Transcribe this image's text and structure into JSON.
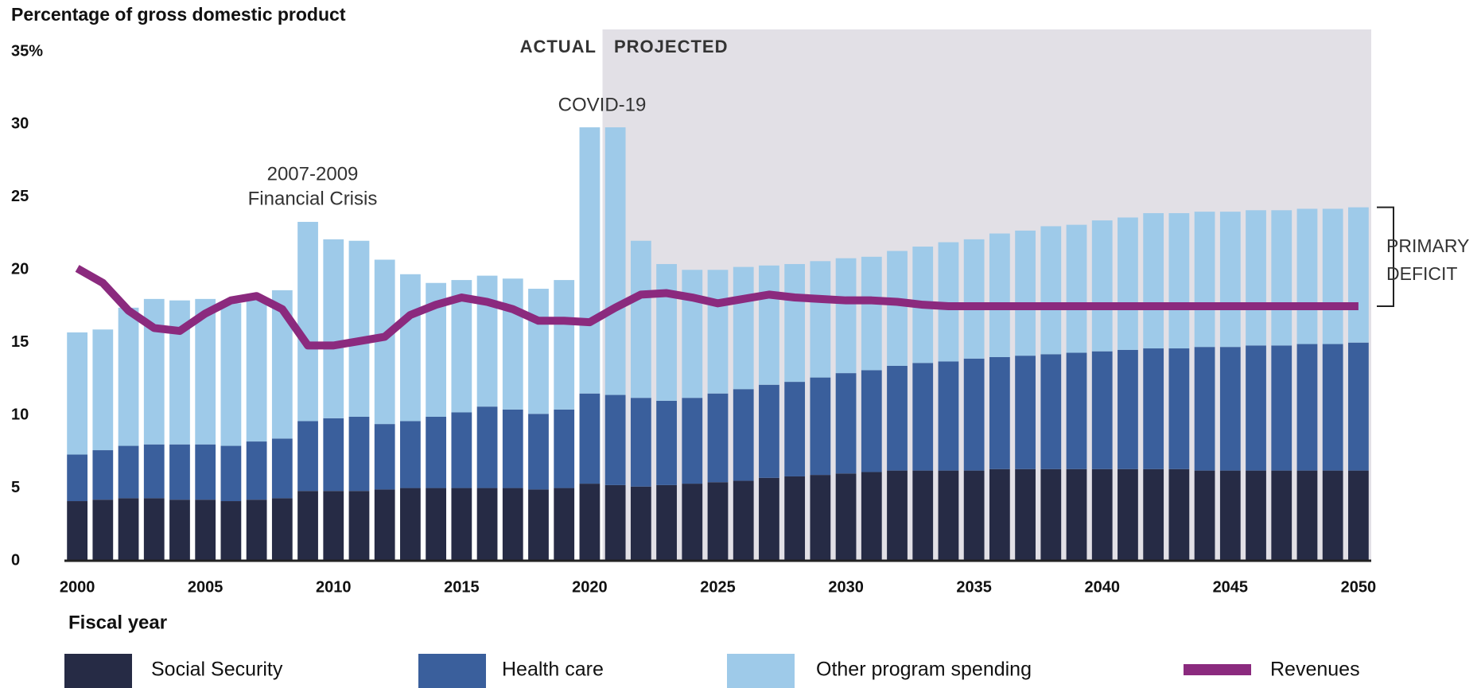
{
  "chart_data": {
    "type": "stacked-bar-line",
    "title": "Percentage of gross domestic product",
    "x_label": "Fiscal year",
    "x": [
      2000,
      2001,
      2002,
      2003,
      2004,
      2005,
      2006,
      2007,
      2008,
      2009,
      2010,
      2011,
      2012,
      2013,
      2014,
      2015,
      2016,
      2017,
      2018,
      2019,
      2020,
      2021,
      2022,
      2023,
      2024,
      2025,
      2026,
      2027,
      2028,
      2029,
      2030,
      2031,
      2032,
      2033,
      2034,
      2035,
      2036,
      2037,
      2038,
      2039,
      2040,
      2041,
      2042,
      2043,
      2044,
      2045,
      2046,
      2047,
      2048,
      2049,
      2050
    ],
    "xlim": [
      1999.5,
      2050.5
    ],
    "xticks": [
      2000,
      2005,
      2010,
      2015,
      2020,
      2025,
      2030,
      2035,
      2040,
      2045,
      2050
    ],
    "ylim": [
      0,
      35
    ],
    "yticks": [
      0,
      5,
      10,
      15,
      20,
      25,
      30,
      {
        "value": 35,
        "label": "35%"
      }
    ],
    "grid": false,
    "projected_from": 2021,
    "series": [
      {
        "name": "Social Security",
        "color": "#262b45",
        "kind": "bar",
        "values": [
          4.1,
          4.2,
          4.3,
          4.3,
          4.2,
          4.2,
          4.1,
          4.2,
          4.3,
          4.8,
          4.8,
          4.8,
          4.9,
          5.0,
          5.0,
          5.0,
          5.0,
          5.0,
          4.9,
          5.0,
          5.3,
          5.2,
          5.1,
          5.2,
          5.3,
          5.4,
          5.5,
          5.7,
          5.8,
          5.9,
          6.0,
          6.1,
          6.2,
          6.2,
          6.2,
          6.2,
          6.3,
          6.3,
          6.3,
          6.3,
          6.3,
          6.3,
          6.3,
          6.3,
          6.2,
          6.2,
          6.2,
          6.2,
          6.2,
          6.2,
          6.2
        ]
      },
      {
        "name": "Health care",
        "color": "#3a5f9c",
        "kind": "bar",
        "values": [
          3.2,
          3.4,
          3.6,
          3.7,
          3.8,
          3.8,
          3.8,
          4.0,
          4.1,
          4.8,
          5.0,
          5.1,
          4.5,
          4.6,
          4.9,
          5.2,
          5.6,
          5.4,
          5.2,
          5.4,
          6.2,
          6.2,
          6.1,
          5.8,
          5.9,
          6.1,
          6.3,
          6.4,
          6.5,
          6.7,
          6.9,
          7.0,
          7.2,
          7.4,
          7.5,
          7.7,
          7.7,
          7.8,
          7.9,
          8.0,
          8.1,
          8.2,
          8.3,
          8.3,
          8.5,
          8.5,
          8.6,
          8.6,
          8.7,
          8.7,
          8.8
        ]
      },
      {
        "name": "Other program spending",
        "color": "#9ecae9",
        "kind": "bar",
        "values": [
          8.4,
          8.3,
          9.5,
          10.0,
          9.9,
          10.0,
          9.8,
          9.8,
          10.2,
          13.7,
          12.3,
          12.1,
          11.3,
          10.1,
          9.2,
          9.1,
          9.0,
          9.0,
          8.6,
          8.9,
          18.3,
          18.4,
          10.8,
          9.4,
          8.8,
          8.5,
          8.4,
          8.2,
          8.1,
          8.0,
          7.9,
          7.8,
          7.9,
          8.0,
          8.2,
          8.2,
          8.5,
          8.6,
          8.8,
          8.8,
          9.0,
          9.1,
          9.3,
          9.3,
          9.3,
          9.3,
          9.3,
          9.3,
          9.3,
          9.3,
          9.3
        ]
      },
      {
        "name": "Revenues",
        "color": "#8b2a7e",
        "kind": "line",
        "values": [
          20.1,
          19.1,
          17.2,
          16.0,
          15.8,
          17.0,
          17.9,
          18.2,
          17.3,
          14.8,
          14.8,
          15.1,
          15.4,
          16.9,
          17.6,
          18.1,
          17.8,
          17.3,
          16.5,
          16.5,
          16.4,
          17.4,
          18.3,
          18.4,
          18.1,
          17.7,
          18.0,
          18.3,
          18.1,
          18.0,
          17.9,
          17.9,
          17.8,
          17.6,
          17.5,
          17.5,
          17.5,
          17.5,
          17.5,
          17.5,
          17.5,
          17.5,
          17.5,
          17.5,
          17.5,
          17.5,
          17.5,
          17.5,
          17.5,
          17.5,
          17.5
        ]
      }
    ],
    "annotations": {
      "actual": "ACTUAL",
      "projected": "PROJECTED",
      "covid": "COVID-19",
      "crisis": [
        "2007-2009",
        "Financial Crisis"
      ],
      "deficit": [
        "PRIMARY",
        "DEFICIT"
      ]
    }
  }
}
